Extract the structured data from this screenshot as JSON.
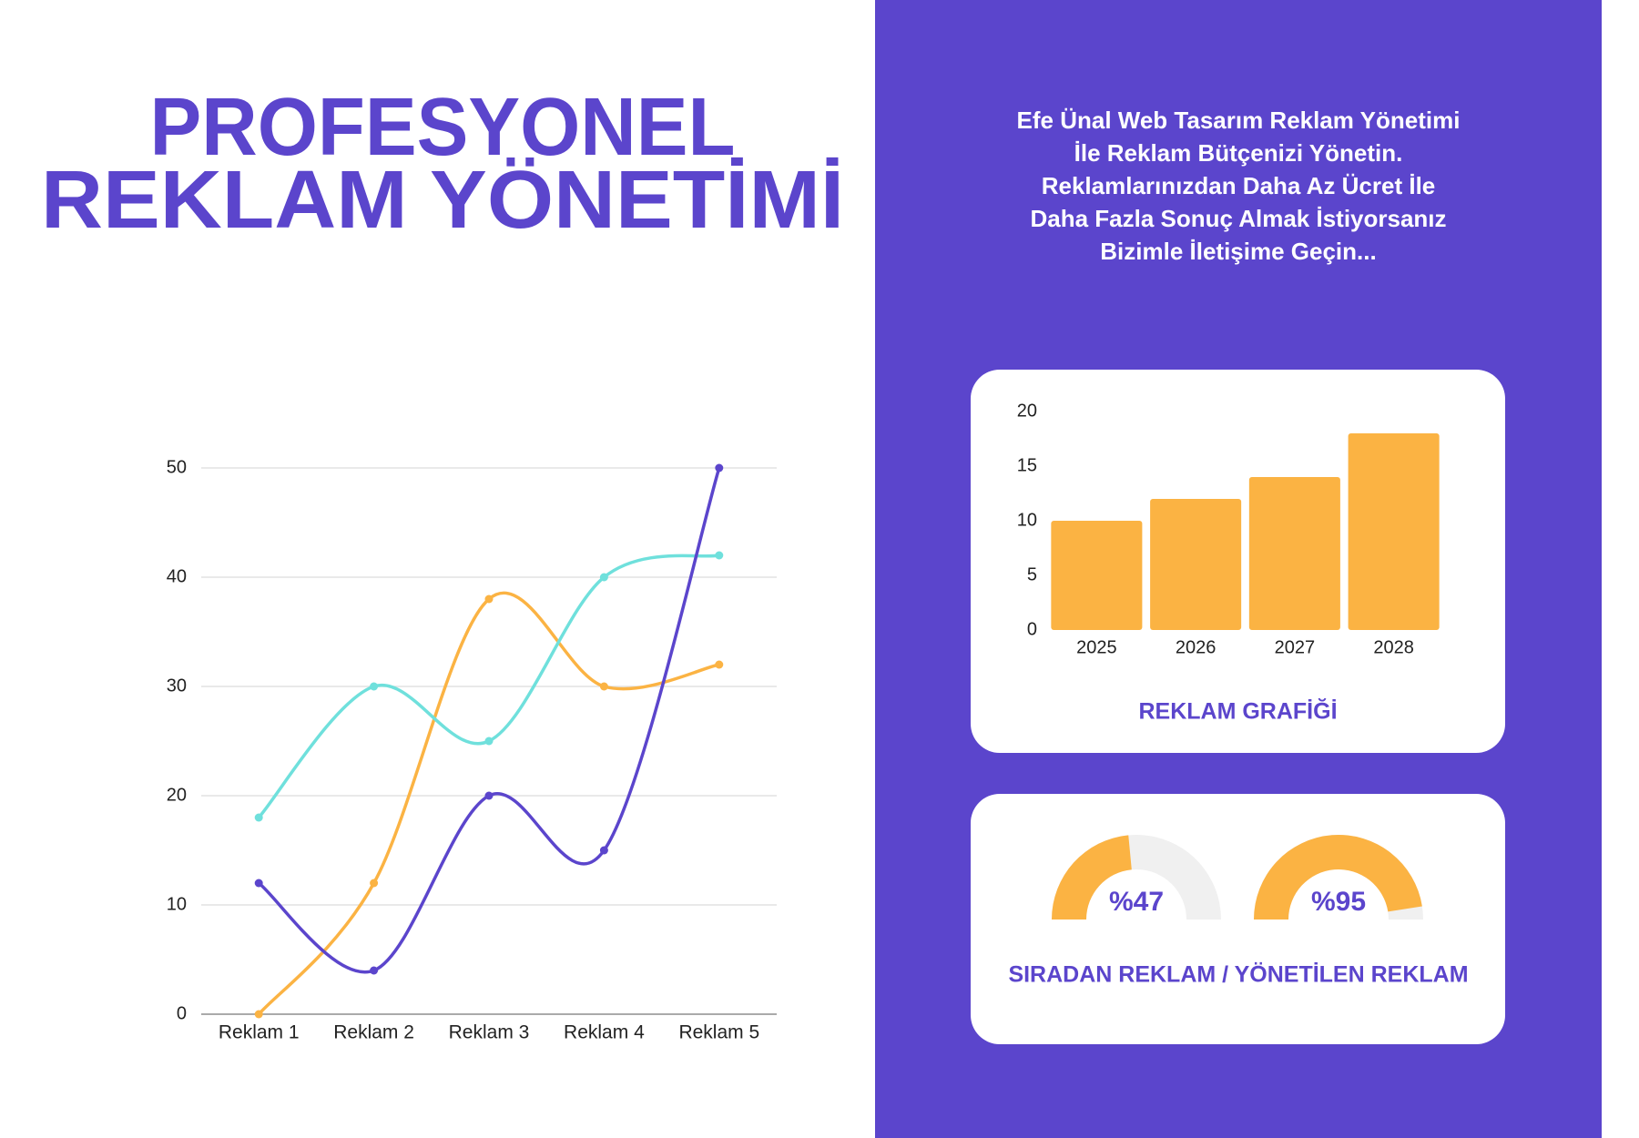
{
  "header": {
    "title": [
      "PROFESYONEL",
      "REKLAM YÖNETİMİ"
    ],
    "text": [
      "Efe Ünal Web Tasarım Reklam Yönetimi",
      "İle Reklam Bütçenizi Yönetin.",
      "Reklamlarınızdan Daha Az Ücret İle",
      "Daha Fazla Sonuç Almak İstiyorsanız",
      "Bizimle İletişime Geçin..."
    ]
  },
  "chart_data": [
    {
      "type": "line",
      "categories": [
        "Reklam 1",
        "Reklam 2",
        "Reklam 3",
        "Reklam 4",
        "Reklam 5"
      ],
      "series": [
        {
          "color": "#fbb343",
          "values": [
            0,
            12,
            38,
            30,
            32
          ]
        },
        {
          "color": "#6fe0dc",
          "values": [
            18,
            30,
            25,
            40,
            42
          ]
        },
        {
          "color": "#5b45cc",
          "values": [
            12,
            4,
            20,
            15,
            50
          ]
        }
      ],
      "ylim": [
        0,
        50
      ],
      "yticks": [
        0,
        10,
        20,
        30,
        40,
        50
      ],
      "grid": true
    },
    {
      "type": "bar",
      "title": "REKLAM GRAFİĞİ",
      "categories": [
        "2025",
        "2026",
        "2027",
        "2028"
      ],
      "values": [
        10,
        12,
        14,
        18
      ],
      "color": "#fbb343",
      "ylim": [
        0,
        20
      ],
      "yticks": [
        0,
        5,
        10,
        15,
        20
      ],
      "grid": false
    },
    {
      "type": "gauge",
      "title": "SIRADAN REKLAM / YÖNETİLEN REKLAM",
      "values": [
        47,
        95
      ],
      "value_labels": [
        "%47",
        "%95"
      ],
      "ylim": [
        0,
        100
      ],
      "color": "#fbb343"
    }
  ]
}
